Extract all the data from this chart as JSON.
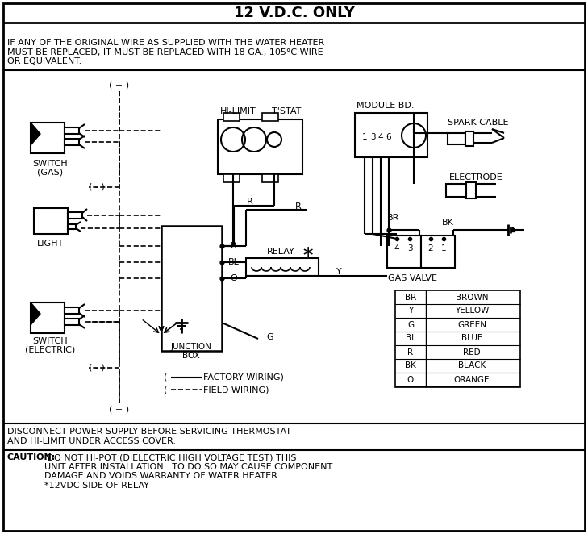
{
  "title": "12 V.D.C. ONLY",
  "warning_text": "IF ANY OF THE ORIGINAL WIRE AS SUPPLIED WITH THE WATER HEATER\nMUST BE REPLACED, IT MUST BE REPLACED WITH 18 GA., 105°C WIRE\nOR EQUIVALENT.",
  "disconnect_text": "DISCONNECT POWER SUPPLY BEFORE SERVICING THERMOSTAT\nAND HI-LIMIT UNDER ACCESS COVER.",
  "caution_bold": "CAUTION:",
  "caution_text": " DO NOT HI-POT (DIELECTRIC HIGH VOLTAGE TEST) THIS\nUNIT AFTER INSTALLATION.  TO DO SO MAY CAUSE COMPONENT\nDAMAGE AND VOIDS WARRANTY OF WATER HEATER.\n*12VDC SIDE OF RELAY",
  "legend": [
    [
      "BR",
      "BROWN"
    ],
    [
      "Y",
      "YELLOW"
    ],
    [
      "G",
      "GREEN"
    ],
    [
      "BL",
      "BLUE"
    ],
    [
      "R",
      "RED"
    ],
    [
      "BK",
      "BLACK"
    ],
    [
      "O",
      "ORANGE"
    ]
  ],
  "bg_color": "#ffffff"
}
